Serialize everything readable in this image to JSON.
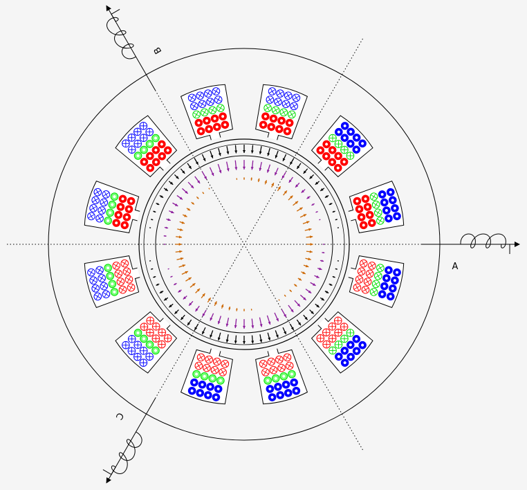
{
  "axes": [
    {
      "label": "A"
    },
    {
      "label": "B"
    },
    {
      "label": "C"
    }
  ]
}
